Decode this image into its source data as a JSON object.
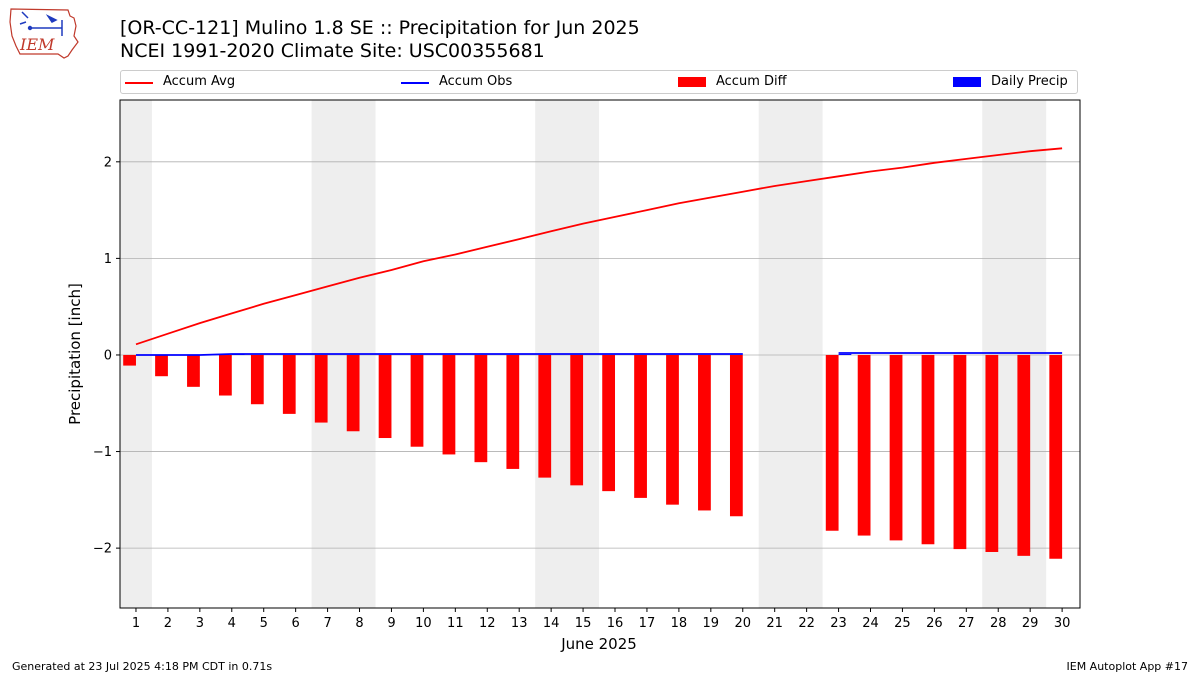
{
  "header": {
    "title": "[OR-CC-121] Mulino 1.8 SE :: Precipitation for Jun 2025",
    "subtitle": "NCEI 1991-2020 Climate Site: USC00355681"
  },
  "logo": {
    "text": "IEM"
  },
  "legend": {
    "items": [
      {
        "label": "Accum Avg",
        "kind": "line",
        "color": "#ff0000"
      },
      {
        "label": "Accum Obs",
        "kind": "line",
        "color": "#0000ff"
      },
      {
        "label": "Accum Diff",
        "kind": "box",
        "color": "#ff0000"
      },
      {
        "label": "Daily Precip",
        "kind": "box",
        "color": "#0000ff"
      }
    ]
  },
  "footer": {
    "left": "Generated at 23 Jul 2025 4:18 PM CDT in 0.71s",
    "right": "IEM Autoplot App #17"
  },
  "chart_data": {
    "type": "bar",
    "xlabel": "June 2025",
    "ylabel": "Precipitation [inch]",
    "ylim": [
      -2.62,
      2.64
    ],
    "yticks": [
      -2,
      -1,
      0,
      1,
      2
    ],
    "ytick_labels": [
      "−2",
      "−1",
      "0",
      "1",
      "2"
    ],
    "grid": true,
    "weekend_shading": [
      [
        1,
        1
      ],
      [
        7,
        8
      ],
      [
        14,
        15
      ],
      [
        21,
        22
      ],
      [
        28,
        29
      ]
    ],
    "categories": [
      "1",
      "2",
      "3",
      "4",
      "5",
      "6",
      "7",
      "8",
      "9",
      "10",
      "11",
      "12",
      "13",
      "14",
      "15",
      "16",
      "17",
      "18",
      "19",
      "20",
      "21",
      "22",
      "23",
      "24",
      "25",
      "26",
      "27",
      "28",
      "29",
      "30"
    ],
    "series": [
      {
        "name": "Accum Avg",
        "kind": "line",
        "color": "#ff0000",
        "values": [
          0.11,
          0.22,
          0.33,
          0.43,
          0.53,
          0.62,
          0.71,
          0.8,
          0.88,
          0.97,
          1.04,
          1.12,
          1.2,
          1.28,
          1.36,
          1.43,
          1.5,
          1.57,
          1.63,
          1.69,
          1.75,
          1.8,
          1.85,
          1.9,
          1.94,
          1.99,
          2.03,
          2.07,
          2.11,
          2.14
        ]
      },
      {
        "name": "Accum Obs",
        "kind": "line",
        "color": "#0000ff",
        "values": [
          0.0,
          0.0,
          0.0,
          0.01,
          0.01,
          0.01,
          0.01,
          0.01,
          0.01,
          0.01,
          0.01,
          0.01,
          0.01,
          0.01,
          0.01,
          0.01,
          0.01,
          0.01,
          0.01,
          0.01,
          null,
          null,
          0.02,
          0.02,
          0.02,
          0.02,
          0.02,
          0.02,
          0.02,
          0.02
        ]
      },
      {
        "name": "Accum Diff",
        "kind": "bar",
        "color": "#ff0000",
        "values": [
          -0.11,
          -0.22,
          -0.33,
          -0.42,
          -0.51,
          -0.61,
          -0.7,
          -0.79,
          -0.86,
          -0.95,
          -1.03,
          -1.11,
          -1.18,
          -1.27,
          -1.35,
          -1.41,
          -1.48,
          -1.55,
          -1.61,
          -1.67,
          null,
          null,
          -1.82,
          -1.87,
          -1.92,
          -1.96,
          -2.01,
          -2.04,
          -2.08,
          -2.11
        ]
      },
      {
        "name": "Daily Precip",
        "kind": "bar",
        "color": "#0000ff",
        "values": [
          0.0,
          0.0,
          0.0,
          0.01,
          0.0,
          0.0,
          0.0,
          0.0,
          0.0,
          0.0,
          0.0,
          0.0,
          0.0,
          0.0,
          0.0,
          0.0,
          0.0,
          0.0,
          0.0,
          0.0,
          null,
          null,
          0.01,
          0.0,
          0.0,
          0.0,
          0.0,
          0.0,
          0.0,
          0.0
        ]
      }
    ]
  }
}
